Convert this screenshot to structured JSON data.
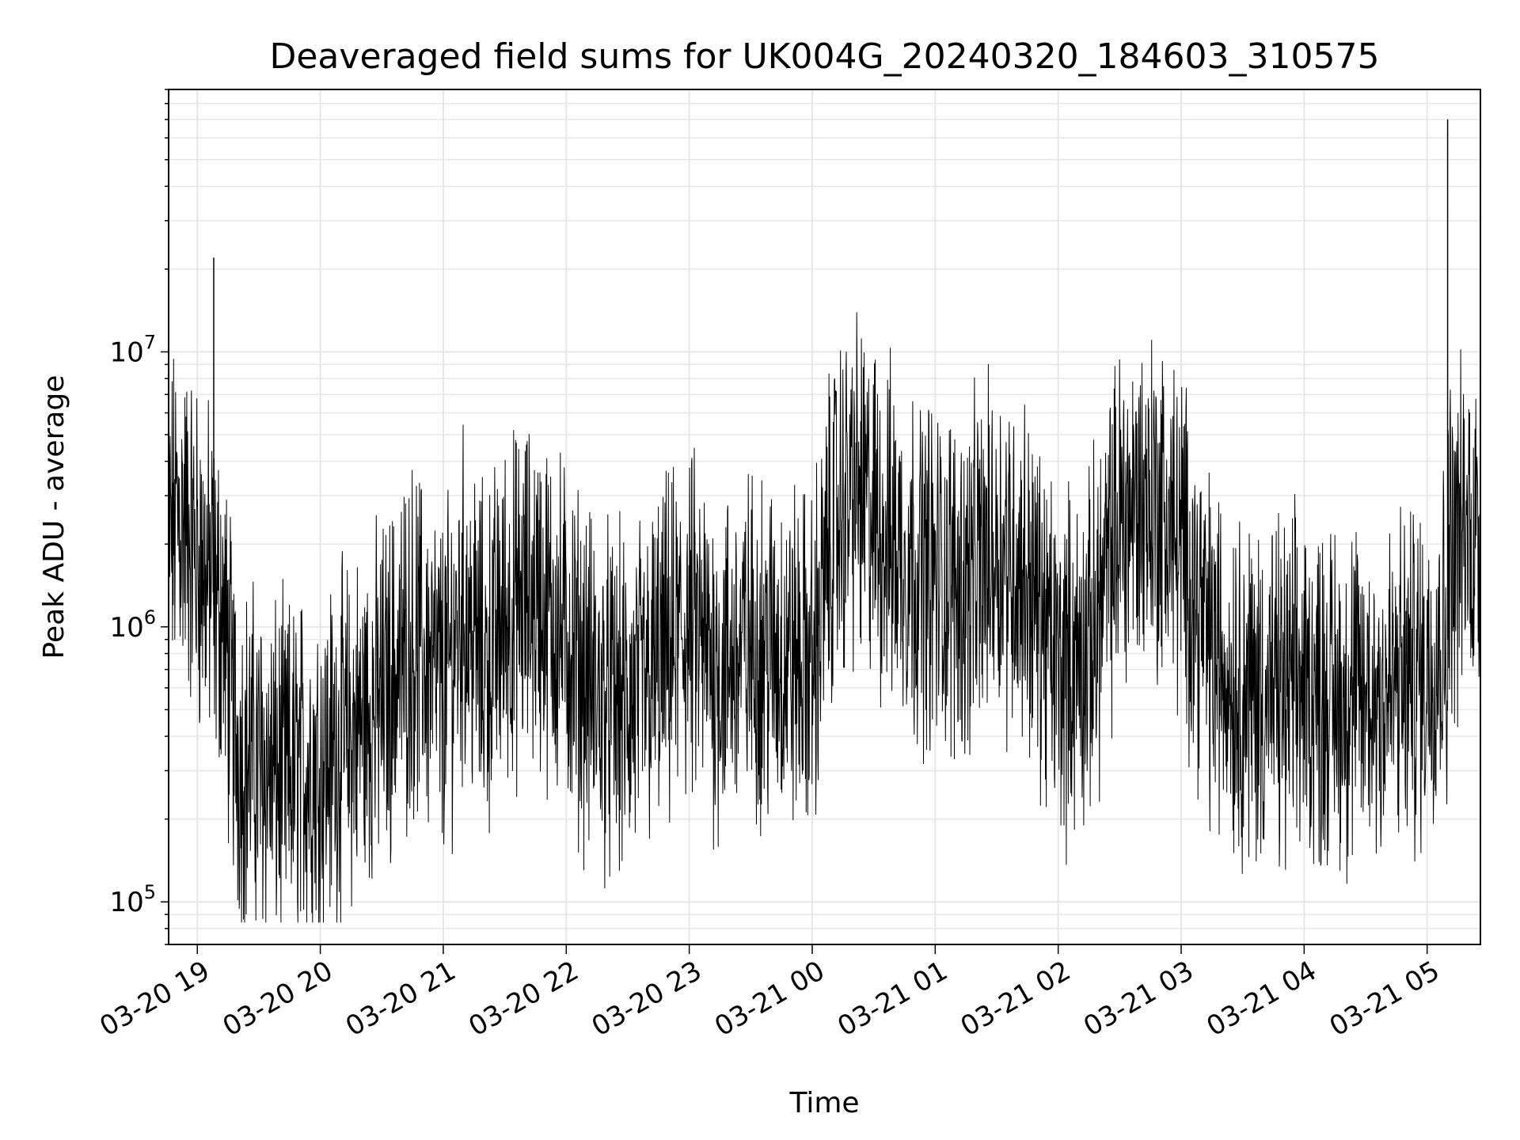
{
  "chart_data": {
    "type": "line",
    "title": "Deaveraged field sums for UK004G_20240320_184603_310575",
    "xlabel": "Time",
    "ylabel": "Peak ADU - average",
    "yscale": "log",
    "grid": true,
    "ylim": [
      70000,
      90000000
    ],
    "xlim": [
      "03-20 18:46",
      "03-21 05:26"
    ],
    "x_ticks": [
      "03-20 19",
      "03-20 20",
      "03-20 21",
      "03-20 22",
      "03-20 23",
      "03-21 00",
      "03-21 01",
      "03-21 02",
      "03-21 03",
      "03-21 04",
      "03-21 05"
    ],
    "y_ticks": [
      {
        "base": "10",
        "exp": "5",
        "value": 100000
      },
      {
        "base": "10",
        "exp": "6",
        "value": 1000000
      },
      {
        "base": "10",
        "exp": "7",
        "value": 10000000
      }
    ],
    "line_color": "#000000",
    "series": [
      {
        "x": [
          "03-20 18:46",
          "03-20 18:50",
          "03-20 18:55",
          "03-20 19:00",
          "03-20 19:05",
          "03-20 19:08",
          "03-20 19:12",
          "03-20 19:15",
          "03-20 19:20",
          "03-20 19:30",
          "03-20 19:40",
          "03-20 19:50",
          "03-20 20:00",
          "03-20 20:15",
          "03-20 20:30",
          "03-20 20:45",
          "03-20 21:00",
          "03-20 21:10",
          "03-20 21:20",
          "03-20 21:30",
          "03-20 21:45",
          "03-20 22:00",
          "03-20 22:15",
          "03-20 22:30",
          "03-20 22:45",
          "03-20 23:00",
          "03-20 23:15",
          "03-20 23:30",
          "03-20 23:45",
          "03-21 00:00",
          "03-21 00:10",
          "03-21 00:20",
          "03-21 00:30",
          "03-21 00:45",
          "03-21 01:00",
          "03-21 01:15",
          "03-21 01:30",
          "03-21 01:45",
          "03-21 02:00",
          "03-21 02:15",
          "03-21 02:30",
          "03-21 02:45",
          "03-21 03:00",
          "03-21 03:15",
          "03-21 03:30",
          "03-21 03:45",
          "03-21 04:00",
          "03-21 04:15",
          "03-21 04:30",
          "03-21 04:45",
          "03-21 05:00",
          "03-21 05:05",
          "03-21 05:10",
          "03-21 05:15",
          "03-21 05:20",
          "03-21 05:26"
        ],
        "y": [
          2000000,
          2600000,
          2300000,
          1800000,
          1500000,
          22000000,
          1200000,
          700000,
          350000,
          320000,
          280000,
          300000,
          320000,
          400000,
          550000,
          900000,
          600000,
          1200000,
          700000,
          1100000,
          1300000,
          900000,
          550000,
          500000,
          700000,
          1000000,
          700000,
          850000,
          800000,
          700000,
          2300000,
          3200000,
          2500000,
          1800000,
          1500000,
          1400000,
          2000000,
          1500000,
          700000,
          800000,
          2500000,
          3000000,
          2000000,
          800000,
          600000,
          550000,
          600000,
          550000,
          550000,
          600000,
          700000,
          900000,
          70000000,
          2000000,
          2300000,
          2200000
        ]
      }
    ]
  }
}
